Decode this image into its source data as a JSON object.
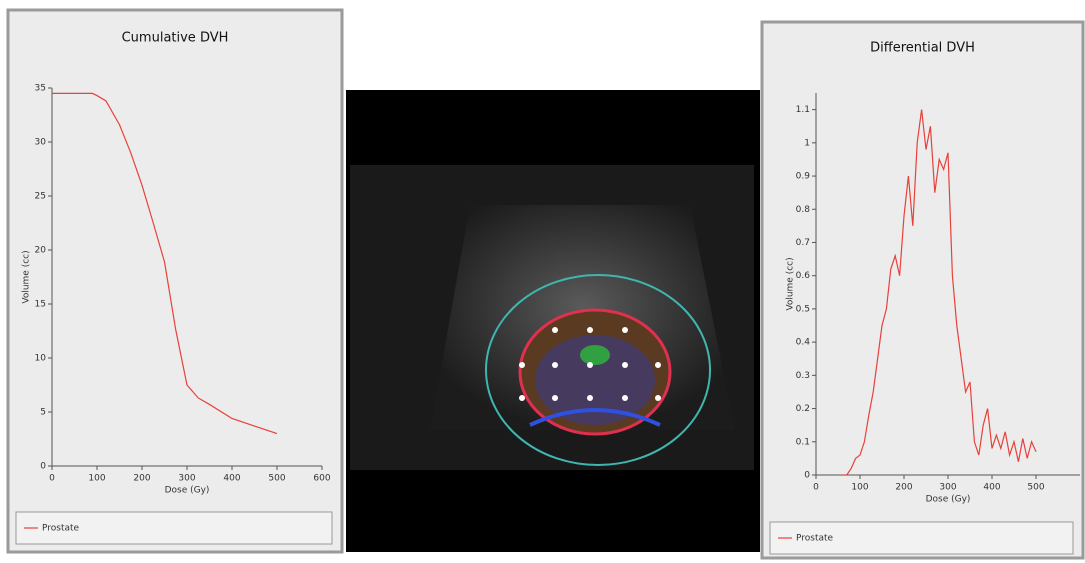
{
  "chart_data": [
    {
      "type": "line",
      "title": "Cumulative DVH",
      "x_label": "Dose (Gy)",
      "y_label": "Volume (cc)",
      "x": [
        0,
        50,
        90,
        100,
        120,
        150,
        175,
        200,
        225,
        250,
        275,
        300,
        325,
        350,
        400,
        450,
        500
      ],
      "series": [
        {
          "name": "Prostate",
          "color": "#e8403a",
          "values": [
            34.5,
            34.5,
            34.5,
            34.3,
            33.8,
            31.6,
            29,
            26,
            22.5,
            18.9,
            12.6,
            7.5,
            6.3,
            5.7,
            4.4,
            3.7,
            3.0
          ]
        }
      ],
      "xlim": [
        0,
        600
      ],
      "ylim": [
        0,
        35
      ],
      "xticks": [
        0,
        100,
        200,
        300,
        400,
        500,
        600
      ],
      "yticks": [
        0,
        5,
        10,
        15,
        20,
        25,
        30,
        35
      ],
      "grid": false,
      "legend": "bottom"
    },
    {
      "type": "line",
      "title": "Differential DVH",
      "x_label": "Dose (Gy)",
      "y_label": "Volume (cc)",
      "x": [
        60,
        70,
        80,
        90,
        100,
        110,
        120,
        130,
        140,
        150,
        160,
        170,
        180,
        190,
        200,
        210,
        220,
        230,
        240,
        250,
        260,
        270,
        280,
        290,
        300,
        310,
        320,
        330,
        340,
        350,
        360,
        370,
        380,
        390,
        400,
        410,
        420,
        430,
        440,
        450,
        460,
        470,
        480,
        490,
        500
      ],
      "series": [
        {
          "name": "Prostate",
          "color": "#e8403a",
          "values": [
            0,
            0,
            0.02,
            0.05,
            0.06,
            0.1,
            0.18,
            0.25,
            0.35,
            0.45,
            0.5,
            0.62,
            0.66,
            0.6,
            0.78,
            0.9,
            0.75,
            1.0,
            1.1,
            0.98,
            1.05,
            0.85,
            0.95,
            0.92,
            0.97,
            0.6,
            0.45,
            0.35,
            0.25,
            0.28,
            0.1,
            0.06,
            0.15,
            0.2,
            0.08,
            0.12,
            0.08,
            0.13,
            0.06,
            0.1,
            0.04,
            0.11,
            0.05,
            0.1,
            0.07
          ]
        }
      ],
      "xlim": [
        0,
        600
      ],
      "ylim": [
        0,
        1.15
      ],
      "xticks": [
        0,
        100,
        200,
        300,
        400,
        500
      ],
      "yticks": [
        0,
        0.1,
        0.2,
        0.3,
        0.4,
        0.5,
        0.6,
        0.7,
        0.8,
        0.9,
        1,
        1.1
      ],
      "grid": false,
      "legend": "bottom"
    }
  ]
}
